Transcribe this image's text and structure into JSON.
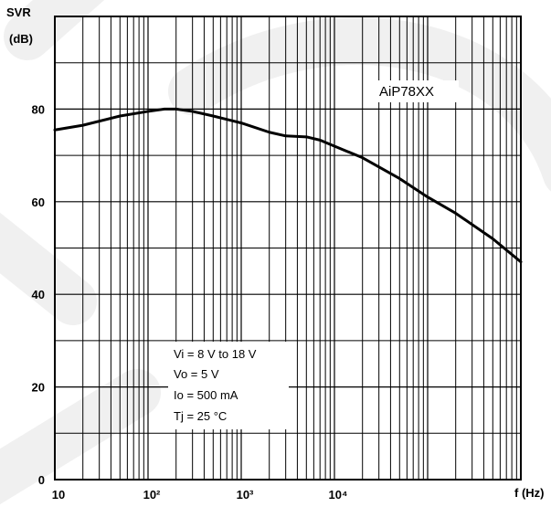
{
  "chart_data": {
    "type": "line",
    "title": "",
    "ylabel_line1": "SVR",
    "ylabel_line2": "(dB)",
    "xlabel": "f (Hz)",
    "x_scale": "log",
    "xlim": [
      10,
      1000000
    ],
    "ylim": [
      0,
      100
    ],
    "grid": true,
    "x_ticks": [
      {
        "value": 10,
        "label": "10"
      },
      {
        "value": 100,
        "label": "10²"
      },
      {
        "value": 1000,
        "label": "10³"
      },
      {
        "value": 10000,
        "label": "10⁴"
      }
    ],
    "y_ticks": [
      {
        "value": 0,
        "label": "0"
      },
      {
        "value": 20,
        "label": "20"
      },
      {
        "value": 40,
        "label": "40"
      },
      {
        "value": 60,
        "label": "60"
      },
      {
        "value": 80,
        "label": "80"
      }
    ],
    "series": [
      {
        "name": "AiP78XX",
        "x": [
          10,
          20,
          50,
          100,
          150,
          200,
          300,
          500,
          1000,
          2000,
          3000,
          5000,
          7000,
          10000,
          20000,
          50000,
          100000,
          200000,
          500000,
          1000000
        ],
        "y": [
          75.5,
          76.5,
          78.5,
          79.5,
          80.0,
          80.0,
          79.5,
          78.5,
          77.0,
          75.0,
          74.2,
          74.0,
          73.3,
          72.0,
          69.5,
          65.0,
          61.0,
          57.5,
          52.0,
          47.0
        ]
      }
    ],
    "annotations": [
      "Vi = 8 V to 18 V",
      "Vo = 5 V",
      "Io = 500 mA",
      "Tj = 25 °C"
    ]
  }
}
